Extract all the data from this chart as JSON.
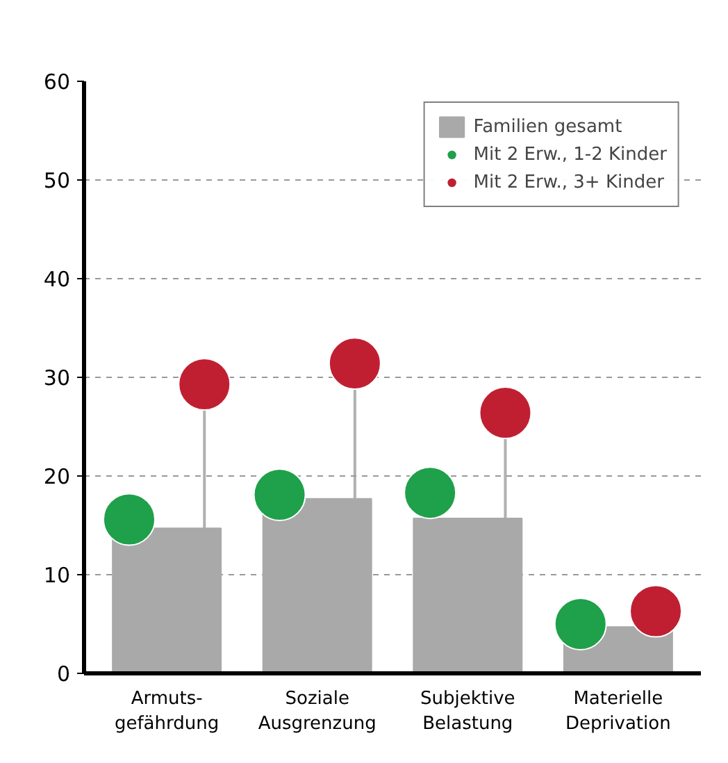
{
  "chart_data": {
    "type": "bar",
    "categories": [
      "Armuts-\ngefährdung",
      "Soziale\nAusgrenzung",
      "Subjektive\nBelastung",
      "Materielle\nDeprivation"
    ],
    "series": [
      {
        "name": "Familien gesamt",
        "color": "#a9a9a9",
        "values": [
          14.7,
          17.7,
          15.7,
          4.7
        ]
      },
      {
        "name": "Mit 2 Erw., 1-2 Kinder",
        "type": "lollipop",
        "color": "#1fa04a",
        "values": [
          15.6,
          18.1,
          18.3,
          5.0
        ]
      },
      {
        "name": "Mit 2 Erw., 3+ Kinder",
        "type": "lollipop",
        "color": "#c01f32",
        "values": [
          29.3,
          31.4,
          26.4,
          6.3
        ]
      }
    ],
    "ylim": [
      0,
      60
    ],
    "yticks": [
      0,
      10,
      20,
      30,
      40,
      50,
      60
    ],
    "grid": "y",
    "legend": "top right",
    "marker": "circle"
  }
}
